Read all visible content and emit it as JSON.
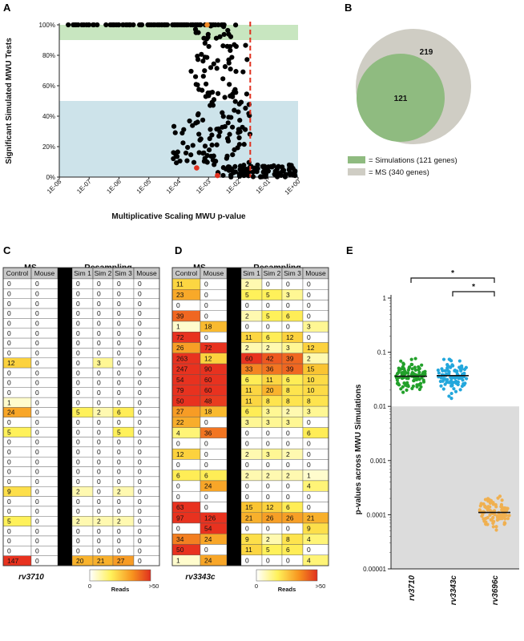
{
  "chart_data": [
    {
      "panel": "A",
      "type": "scatter",
      "xlabel": "Multiplicative Scaling MWU p-value",
      "ylabel": "Significant Simulated MWU Tests",
      "x_ticks": [
        "1E-08",
        "1E-07",
        "1E-06",
        "1E-05",
        "1E-04",
        "1E-03",
        "1E-02",
        "1E-01",
        "1E+00"
      ],
      "y_ticks": [
        "0%",
        "20%",
        "40%",
        "60%",
        "80%",
        "100%"
      ],
      "x_scale": "log10",
      "xlim": [
        1e-08,
        1
      ],
      "ylim": [
        0,
        100
      ],
      "shaded_bands": [
        {
          "y_from": 90,
          "y_to": 100,
          "color": "#c8e6c0"
        },
        {
          "y_from": 0,
          "y_to": 50,
          "color": "#cde3ea"
        }
      ],
      "threshold_line": {
        "x": 0.025,
        "color": "#e0301e",
        "style": "dashed"
      },
      "highlighted_points": [
        {
          "x": 0.0009,
          "y": 100,
          "color": "#f08a24"
        },
        {
          "x": 0.0004,
          "y": 6,
          "color": "#e0301e"
        },
        {
          "x": 0.002,
          "y": 1,
          "color": "#e0301e"
        }
      ],
      "point_color": "#000000",
      "approx_point_count": 340
    },
    {
      "panel": "B",
      "type": "venn",
      "sets": [
        {
          "name": "= Simulations (121 genes)",
          "count_label": "121",
          "color": "#8fbb80"
        },
        {
          "name": "= MS (340 genes)",
          "count_label": "219",
          "color": "#cfcdc4"
        }
      ]
    },
    {
      "panel": "C",
      "type": "table",
      "gene": "rv3710",
      "group_headers": [
        "MS",
        "Resampling"
      ],
      "columns": [
        "Control",
        "Mouse",
        "Sim 1",
        "Sim 2",
        "Sim 3",
        "Mouse"
      ],
      "rows": [
        [
          0,
          0,
          0,
          0,
          0,
          0
        ],
        [
          0,
          0,
          0,
          0,
          0,
          0
        ],
        [
          0,
          0,
          0,
          0,
          0,
          0
        ],
        [
          0,
          0,
          0,
          0,
          0,
          0
        ],
        [
          0,
          0,
          0,
          0,
          0,
          0
        ],
        [
          0,
          0,
          0,
          0,
          0,
          0
        ],
        [
          0,
          0,
          0,
          0,
          0,
          0
        ],
        [
          0,
          0,
          0,
          0,
          0,
          0
        ],
        [
          12,
          0,
          0,
          3,
          0,
          0
        ],
        [
          0,
          0,
          0,
          0,
          0,
          0
        ],
        [
          0,
          0,
          0,
          0,
          0,
          0
        ],
        [
          0,
          0,
          0,
          0,
          0,
          0
        ],
        [
          1,
          0,
          0,
          0,
          0,
          0
        ],
        [
          24,
          0,
          5,
          2,
          6,
          0
        ],
        [
          0,
          0,
          0,
          0,
          0,
          0
        ],
        [
          5,
          0,
          0,
          0,
          5,
          0
        ],
        [
          0,
          0,
          0,
          0,
          0,
          0
        ],
        [
          0,
          0,
          0,
          0,
          0,
          0
        ],
        [
          0,
          0,
          0,
          0,
          0,
          0
        ],
        [
          0,
          0,
          0,
          0,
          0,
          0
        ],
        [
          0,
          0,
          0,
          0,
          0,
          0
        ],
        [
          9,
          0,
          2,
          0,
          2,
          0
        ],
        [
          0,
          0,
          0,
          0,
          0,
          0
        ],
        [
          0,
          0,
          0,
          0,
          0,
          0
        ],
        [
          5,
          0,
          2,
          2,
          2,
          0
        ],
        [
          0,
          0,
          0,
          0,
          0,
          0
        ],
        [
          0,
          0,
          0,
          0,
          0,
          0
        ],
        [
          0,
          0,
          0,
          0,
          0,
          0
        ],
        [
          147,
          0,
          20,
          21,
          27,
          0
        ]
      ],
      "color_scale": {
        "min_label": "0",
        "max_label": ">50",
        "title": "Reads"
      }
    },
    {
      "panel": "D",
      "type": "table",
      "gene": "rv3343c",
      "group_headers": [
        "MS",
        "Resampling"
      ],
      "columns": [
        "Control",
        "Mouse",
        "Sim 1",
        "Sim 2",
        "Sim 3",
        "Mouse"
      ],
      "rows": [
        [
          11,
          0,
          2,
          0,
          0,
          0
        ],
        [
          23,
          0,
          5,
          5,
          3,
          0
        ],
        [
          0,
          0,
          0,
          0,
          0,
          0
        ],
        [
          39,
          0,
          2,
          5,
          6,
          0
        ],
        [
          1,
          18,
          0,
          0,
          0,
          3
        ],
        [
          72,
          0,
          11,
          6,
          12,
          0
        ],
        [
          26,
          72,
          2,
          2,
          3,
          12
        ],
        [
          263,
          12,
          60,
          42,
          39,
          2
        ],
        [
          247,
          90,
          33,
          36,
          39,
          15
        ],
        [
          54,
          60,
          6,
          11,
          6,
          10
        ],
        [
          79,
          60,
          11,
          20,
          8,
          10
        ],
        [
          50,
          48,
          11,
          8,
          8,
          8
        ],
        [
          27,
          18,
          6,
          3,
          2,
          3
        ],
        [
          22,
          0,
          3,
          3,
          3,
          0
        ],
        [
          4,
          36,
          0,
          0,
          0,
          6
        ],
        [
          0,
          0,
          0,
          0,
          0,
          0
        ],
        [
          12,
          0,
          2,
          3,
          2,
          0
        ],
        [
          0,
          0,
          0,
          0,
          0,
          0
        ],
        [
          6,
          6,
          2,
          2,
          2,
          1
        ],
        [
          0,
          24,
          0,
          0,
          0,
          4
        ],
        [
          0,
          0,
          0,
          0,
          0,
          0
        ],
        [
          63,
          0,
          15,
          12,
          6,
          0
        ],
        [
          97,
          126,
          21,
          26,
          26,
          21
        ],
        [
          0,
          54,
          0,
          0,
          0,
          9
        ],
        [
          34,
          24,
          9,
          2,
          8,
          4
        ],
        [
          50,
          0,
          11,
          5,
          6,
          0
        ],
        [
          1,
          24,
          0,
          0,
          0,
          4
        ]
      ],
      "color_scale": {
        "min_label": "0",
        "max_label": ">50",
        "title": "Reads"
      }
    },
    {
      "panel": "E",
      "type": "scatter",
      "ylabel": "p-values across MWU Simulations",
      "y_scale": "log10",
      "y_ticks": [
        "1",
        "0.1",
        "0.01",
        "0.001",
        "0.0001",
        "0.00001"
      ],
      "ylim": [
        1e-05,
        1
      ],
      "categories": [
        "rv3710",
        "rv3343c",
        "rv3696c"
      ],
      "series": [
        {
          "category": "rv3710",
          "color": "#22a02a",
          "median": 0.036,
          "min": 0.006,
          "max": 0.16
        },
        {
          "category": "rv3343c",
          "color": "#23a7dc",
          "median": 0.037,
          "min": 0.006,
          "max": 0.22
        },
        {
          "category": "rv3696c",
          "color": "#f0b050",
          "median": 0.00011,
          "min": 1.2e-05,
          "max": 0.0004
        }
      ],
      "shaded_region": {
        "y_from": 1e-05,
        "y_to": 0.01,
        "color": "#dcdcdc"
      },
      "significance": [
        {
          "from": "rv3710",
          "to": "rv3696c",
          "label": "*"
        },
        {
          "from": "rv3343c",
          "to": "rv3696c",
          "label": "*"
        }
      ]
    }
  ],
  "panel_labels": {
    "a": "A",
    "b": "B",
    "c": "C",
    "d": "D",
    "e": "E"
  }
}
